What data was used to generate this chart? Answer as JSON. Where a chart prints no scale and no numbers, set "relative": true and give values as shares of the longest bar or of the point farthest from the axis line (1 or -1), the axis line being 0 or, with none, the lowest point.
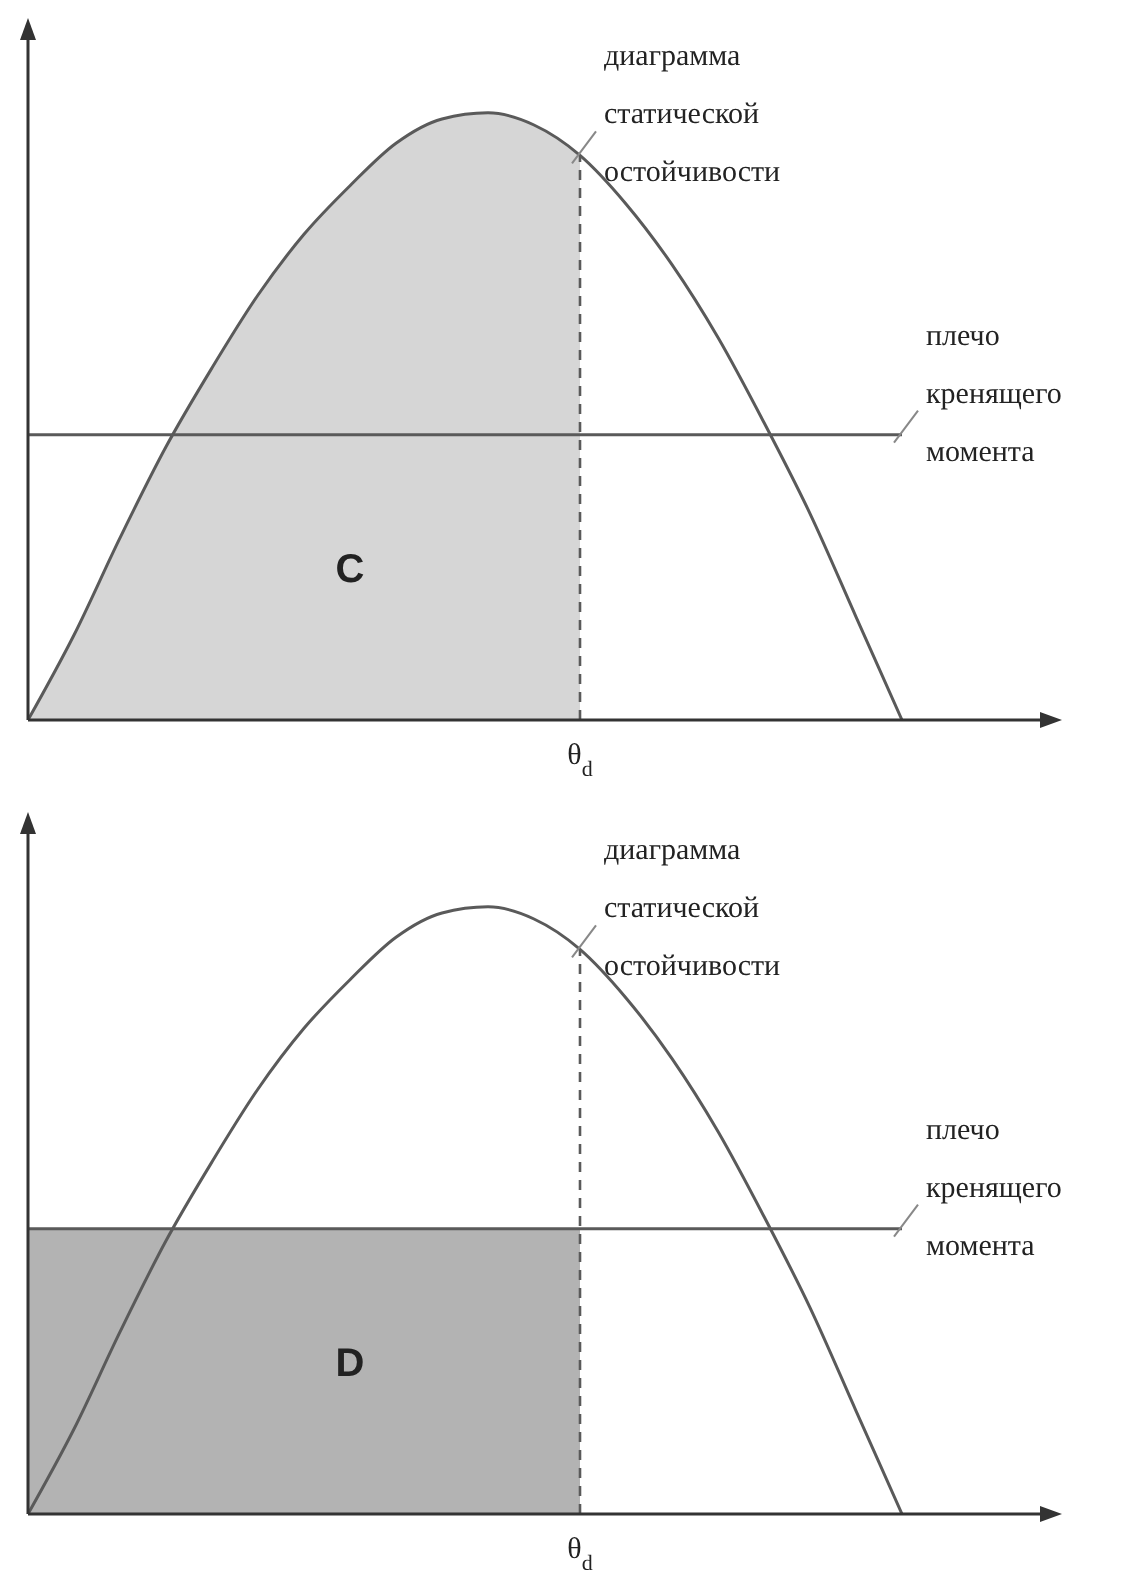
{
  "chart_data": [
    {
      "type": "line",
      "relative": true,
      "categories": [
        null,
        null,
        null,
        null,
        null,
        null,
        null,
        null,
        null,
        null,
        null,
        null,
        null,
        null,
        null,
        null,
        null,
        null,
        null,
        null,
        null,
        null,
        null
      ],
      "series": [
        {
          "type": "area",
          "color": "#d6d6d6",
          "values": [
            0,
            0.14,
            0.3,
            0.45,
            0.58,
            0.7,
            0.8,
            0.88,
            0.95,
            0.99,
            1.0,
            0.98,
            0.93,
            null,
            null,
            null,
            null,
            null,
            null,
            null,
            null,
            null,
            null
          ]
        },
        {
          "name": "диаграмма статической остойчивости",
          "color": "#5a5a5a",
          "values": [
            0,
            0.14,
            0.3,
            0.45,
            0.58,
            0.7,
            0.8,
            0.88,
            0.95,
            0.99,
            1.0,
            0.98,
            0.93,
            0.85,
            0.75,
            0.63,
            0.49,
            0.34,
            0.17,
            0,
            null,
            null,
            null
          ]
        },
        {
          "name": "плечо кренящего момента",
          "color": "#5a5a5a",
          "values": [
            0.47,
            0.47,
            0.47,
            0.47,
            0.47,
            0.47,
            0.47,
            0.47,
            0.47,
            0.47,
            0.47,
            0.47,
            0.47,
            0.47,
            0.47,
            0.47,
            0.47,
            0.47,
            0.47,
            0.47,
            null,
            null,
            null
          ]
        }
      ],
      "annotations": [
        "θ$_{d}$",
        "C"
      ],
      "grid": false,
      "legend": false
    },
    {
      "type": "line",
      "relative": true,
      "categories": [
        null,
        null,
        null,
        null,
        null,
        null,
        null,
        null,
        null,
        null,
        null,
        null,
        null,
        null,
        null,
        null,
        null,
        null,
        null,
        null,
        null,
        null,
        null
      ],
      "series": [
        {
          "type": "area",
          "color": "#b3b3b3",
          "values": [
            0.47,
            0.47,
            0.47,
            0.47,
            0.47,
            0.47,
            0.47,
            0.47,
            0.47,
            0.47,
            0.47,
            0.47,
            0.47,
            null,
            null,
            null,
            null,
            null,
            null,
            null,
            null,
            null,
            null
          ]
        },
        {
          "name": "диаграмма статической остойчивости",
          "color": "#5a5a5a",
          "values": [
            0,
            0.14,
            0.3,
            0.45,
            0.58,
            0.7,
            0.8,
            0.88,
            0.95,
            0.99,
            1.0,
            0.98,
            0.93,
            0.85,
            0.75,
            0.63,
            0.49,
            0.34,
            0.17,
            0,
            null,
            null,
            null
          ]
        },
        {
          "name": "плечо кренящего момента",
          "color": "#5a5a5a",
          "values": [
            0.47,
            0.47,
            0.47,
            0.47,
            0.47,
            0.47,
            0.47,
            0.47,
            0.47,
            0.47,
            0.47,
            0.47,
            0.47,
            0.47,
            0.47,
            0.47,
            0.47,
            0.47,
            0.47,
            0.47,
            null,
            null,
            null
          ]
        }
      ],
      "annotations": [
        "θ$_{d}$",
        "D"
      ],
      "grid": false,
      "legend": false
    }
  ]
}
